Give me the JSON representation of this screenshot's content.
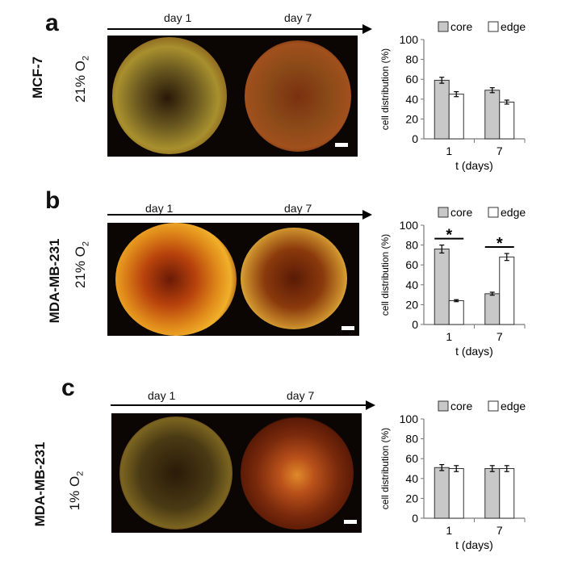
{
  "panels": [
    {
      "id": "a",
      "letter": "a",
      "cell_line": "MCF-7",
      "oxygen": "21% O",
      "oxygen_sub": "2",
      "days": [
        "day 1",
        "day 7"
      ],
      "chart_data": {
        "type": "bar",
        "categories": [
          "1",
          "7"
        ],
        "series": [
          {
            "name": "core",
            "values": [
              59,
              49
            ],
            "errors": [
              3,
              2.5
            ]
          },
          {
            "name": "edge",
            "values": [
              45,
              37
            ],
            "errors": [
              2.5,
              2
            ]
          }
        ],
        "xlabel": "t (days)",
        "ylabel": "cell distribution (%)",
        "ylim": [
          0,
          100
        ],
        "yticks": [
          0,
          20,
          40,
          60,
          80,
          100
        ],
        "significance": [],
        "legend_position": "top"
      }
    },
    {
      "id": "b",
      "letter": "b",
      "cell_line": "MDA-MB-231",
      "oxygen": "21% O",
      "oxygen_sub": "2",
      "days": [
        "day 1",
        "day 7"
      ],
      "chart_data": {
        "type": "bar",
        "categories": [
          "1",
          "7"
        ],
        "series": [
          {
            "name": "core",
            "values": [
              76,
              31
            ],
            "errors": [
              4,
              1.5
            ]
          },
          {
            "name": "edge",
            "values": [
              24,
              68
            ],
            "errors": [
              1,
              3.5
            ]
          }
        ],
        "xlabel": "t (days)",
        "ylabel": "cell distribution (%)",
        "ylim": [
          0,
          100
        ],
        "yticks": [
          0,
          20,
          40,
          60,
          80,
          100
        ],
        "significance": [
          "*",
          "*"
        ],
        "legend_position": "top"
      }
    },
    {
      "id": "c",
      "letter": "c",
      "cell_line": "MDA-MB-231",
      "oxygen": "1% O",
      "oxygen_sub": "2",
      "days": [
        "day 1",
        "day 7"
      ],
      "chart_data": {
        "type": "bar",
        "categories": [
          "1",
          "7"
        ],
        "series": [
          {
            "name": "core",
            "values": [
              51,
              50
            ],
            "errors": [
              3,
              3
            ]
          },
          {
            "name": "edge",
            "values": [
              50,
              50
            ],
            "errors": [
              3,
              3
            ]
          }
        ],
        "xlabel": "t (days)",
        "ylabel": "cell distribution (%)",
        "ylim": [
          0,
          100
        ],
        "yticks": [
          0,
          20,
          40,
          60,
          80,
          100
        ],
        "significance": [],
        "legend_position": "top"
      }
    }
  ],
  "colors": {
    "core_bar": "#c8c8c8",
    "edge_bar": "#ffffff",
    "bar_stroke": "#333333",
    "micrograph_bg": "#0b0503"
  }
}
